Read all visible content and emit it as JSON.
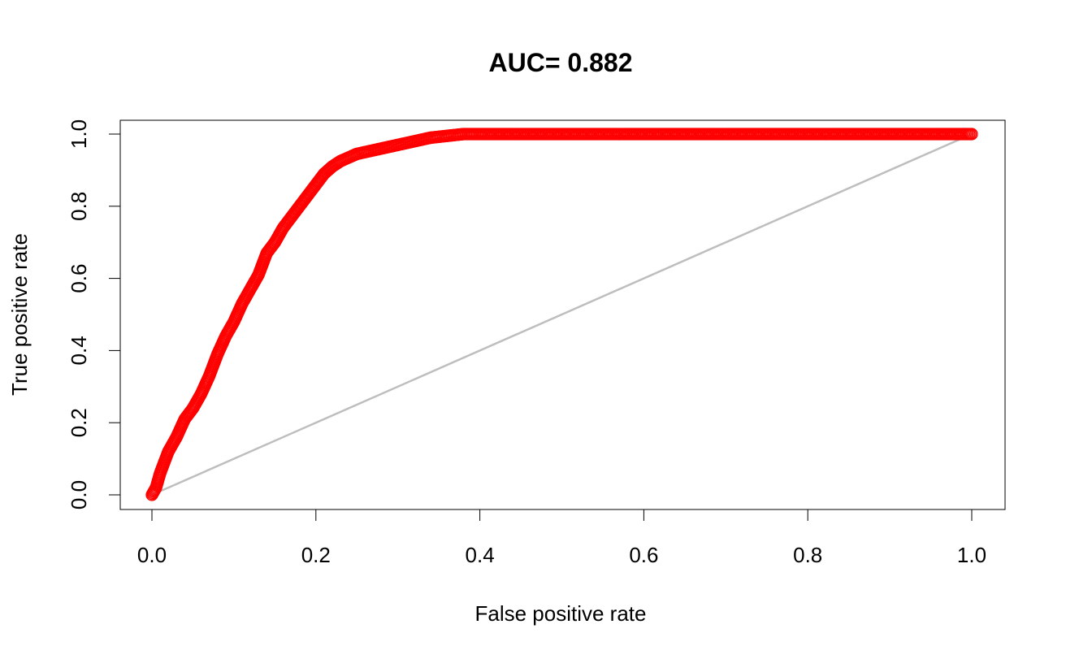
{
  "chart_data": {
    "type": "line",
    "title": "AUC= 0.882",
    "xlabel": "False positive rate",
    "ylabel": "True positive rate",
    "xlim": [
      0,
      1
    ],
    "ylim": [
      0,
      1
    ],
    "x_ticks": [
      0.0,
      0.2,
      0.4,
      0.6,
      0.8,
      1.0
    ],
    "y_ticks": [
      0.0,
      0.2,
      0.4,
      0.6,
      0.8,
      1.0
    ],
    "x_tick_labels": [
      "0.0",
      "0.2",
      "0.4",
      "0.6",
      "0.8",
      "1.0"
    ],
    "y_tick_labels": [
      "0.0",
      "0.2",
      "0.4",
      "0.6",
      "0.8",
      "1.0"
    ],
    "grid": false,
    "series": [
      {
        "role": "roc-curve",
        "marker": "open-circle",
        "color": "#ff0000",
        "x": [
          0.0,
          0.005,
          0.01,
          0.015,
          0.02,
          0.03,
          0.04,
          0.05,
          0.06,
          0.07,
          0.08,
          0.09,
          0.1,
          0.11,
          0.12,
          0.13,
          0.14,
          0.15,
          0.16,
          0.17,
          0.18,
          0.19,
          0.2,
          0.21,
          0.22,
          0.23,
          0.24,
          0.25,
          0.26,
          0.28,
          0.3,
          0.32,
          0.34,
          0.36,
          0.38,
          0.4,
          0.45,
          0.5,
          0.55,
          0.6,
          0.65,
          0.7,
          0.75,
          0.8,
          0.85,
          0.9,
          0.95,
          1.0
        ],
        "y": [
          0.0,
          0.02,
          0.06,
          0.09,
          0.12,
          0.16,
          0.21,
          0.24,
          0.28,
          0.33,
          0.39,
          0.44,
          0.48,
          0.53,
          0.57,
          0.61,
          0.67,
          0.7,
          0.74,
          0.77,
          0.8,
          0.83,
          0.86,
          0.89,
          0.91,
          0.925,
          0.935,
          0.945,
          0.95,
          0.96,
          0.97,
          0.98,
          0.99,
          0.995,
          1.0,
          1.0,
          1.0,
          1.0,
          1.0,
          1.0,
          1.0,
          1.0,
          1.0,
          1.0,
          1.0,
          1.0,
          1.0,
          1.0
        ]
      },
      {
        "role": "chance-line",
        "color": "#bebebe",
        "x": [
          0,
          1
        ],
        "y": [
          0,
          1
        ]
      }
    ]
  }
}
